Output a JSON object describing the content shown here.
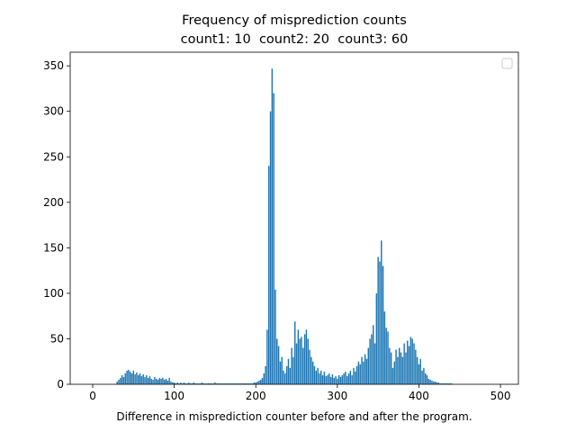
{
  "chart_data": {
    "type": "bar",
    "title": "Frequency of misprediction counts",
    "subtitle": "count1: 10  count2: 20  count3: 60",
    "x_label": "Difference in misprediction counter before and after the program.",
    "color": "#1f77b4",
    "xlim": [
      -27.6,
      522
    ],
    "ylim": [
      0,
      365
    ],
    "xticks": [
      0,
      100,
      200,
      300,
      400,
      500
    ],
    "yticks": [
      0,
      50,
      100,
      150,
      200,
      250,
      300,
      350
    ],
    "x": [
      30,
      32,
      34,
      36,
      38,
      40,
      42,
      44,
      46,
      48,
      50,
      52,
      54,
      56,
      58,
      60,
      62,
      64,
      66,
      68,
      70,
      72,
      74,
      76,
      78,
      80,
      82,
      84,
      86,
      88,
      90,
      92,
      94,
      96,
      98,
      100,
      102,
      104,
      106,
      108,
      110,
      112,
      114,
      116,
      118,
      120,
      122,
      124,
      126,
      128,
      130,
      132,
      134,
      136,
      138,
      140,
      142,
      144,
      146,
      148,
      150,
      152,
      154,
      156,
      158,
      160,
      162,
      164,
      166,
      168,
      170,
      172,
      174,
      176,
      178,
      180,
      182,
      184,
      186,
      188,
      190,
      192,
      194,
      196,
      198,
      200,
      202,
      204,
      206,
      208,
      210,
      212,
      214,
      216,
      218,
      220,
      222,
      224,
      226,
      228,
      230,
      232,
      234,
      236,
      238,
      240,
      242,
      244,
      246,
      248,
      250,
      252,
      254,
      256,
      258,
      260,
      262,
      264,
      266,
      268,
      270,
      272,
      274,
      276,
      278,
      280,
      282,
      284,
      286,
      288,
      290,
      292,
      294,
      296,
      298,
      300,
      302,
      304,
      306,
      308,
      310,
      312,
      314,
      316,
      318,
      320,
      322,
      324,
      326,
      328,
      330,
      332,
      334,
      336,
      338,
      340,
      342,
      344,
      346,
      348,
      350,
      352,
      354,
      356,
      358,
      360,
      362,
      364,
      366,
      368,
      370,
      372,
      374,
      376,
      378,
      380,
      382,
      384,
      386,
      388,
      390,
      392,
      394,
      396,
      398,
      400,
      402,
      404,
      406,
      408,
      410,
      412,
      414,
      416,
      418,
      420,
      422,
      424,
      426,
      428,
      430,
      432,
      434,
      436,
      438,
      440
    ],
    "values": [
      3,
      5,
      7,
      10,
      8,
      12,
      15,
      16,
      14,
      12,
      15,
      11,
      13,
      10,
      12,
      9,
      11,
      8,
      10,
      7,
      9,
      6,
      5,
      8,
      6,
      5,
      7,
      6,
      7,
      5,
      6,
      4,
      7,
      3,
      2,
      2,
      1,
      2,
      1,
      2,
      1,
      2,
      1,
      1,
      2,
      1,
      1,
      2,
      1,
      1,
      1,
      1,
      2,
      1,
      1,
      1,
      1,
      1,
      1,
      1,
      2,
      1,
      1,
      1,
      1,
      1,
      1,
      1,
      1,
      1,
      1,
      1,
      1,
      1,
      1,
      1,
      1,
      1,
      1,
      1,
      1,
      1,
      1,
      1,
      2,
      2,
      3,
      4,
      5,
      7,
      12,
      20,
      60,
      240,
      300,
      347,
      320,
      104,
      50,
      42,
      25,
      30,
      15,
      12,
      20,
      28,
      18,
      40,
      30,
      69,
      45,
      60,
      50,
      52,
      40,
      55,
      60,
      50,
      38,
      30,
      25,
      20,
      15,
      18,
      12,
      15,
      10,
      14,
      9,
      10,
      12,
      8,
      11,
      7,
      9,
      6,
      10,
      8,
      10,
      12,
      14,
      9,
      12,
      15,
      10,
      18,
      14,
      20,
      25,
      22,
      30,
      25,
      33,
      28,
      40,
      50,
      55,
      65,
      45,
      100,
      140,
      135,
      158,
      130,
      80,
      62,
      58,
      40,
      35,
      18,
      25,
      38,
      30,
      40,
      35,
      30,
      45,
      35,
      48,
      42,
      52,
      50,
      45,
      38,
      30,
      22,
      28,
      15,
      18,
      12,
      10,
      6,
      5,
      4,
      3,
      3,
      2,
      2,
      1,
      1,
      1,
      1,
      1,
      1,
      1,
      1
    ]
  }
}
